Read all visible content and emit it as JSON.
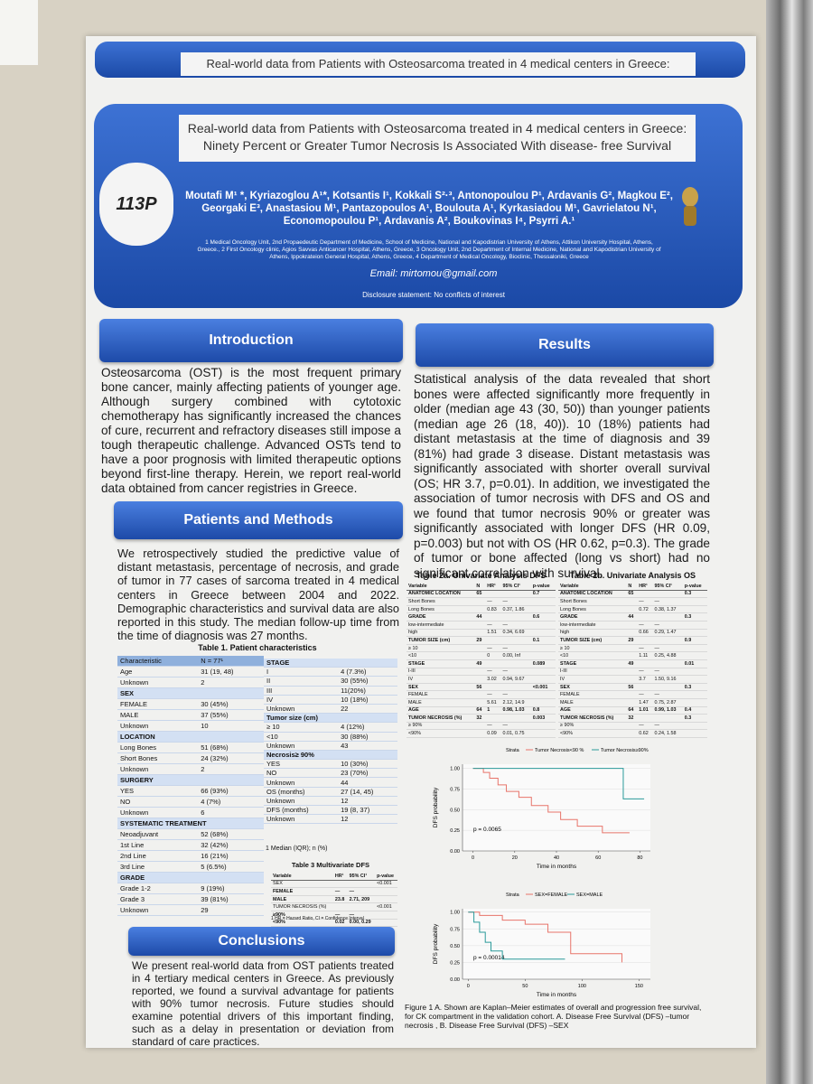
{
  "header": {
    "banner": "Real-world data from Patients with Osteosarcoma treated in 4 medical centers in Greece:",
    "title_lines": [
      "Real-world data from Patients with Osteosarcoma treated in 4 medical centers in Greece:",
      "Ninety Percent or Greater Tumor Necrosis Is Associated With disease- free Survival"
    ],
    "poster_id": "113P",
    "authors": "Moutafi M¹ *, Kyriazoglou A¹*, Kotsantis I¹, Kokkali S²·³, Antonopoulou P¹, Ardavanis G², Magkou E², Georgaki E³, Anastasiou M¹, Pantazopoulos A¹, Boulouta A¹, Kyrkasiadou M¹, Gavrielatou N¹, Economopoulou P¹, Ardavanis A², Boukovinas I⁴, Psyrri A.¹",
    "affiliations": "1 Medical Oncology Unit, 2nd Propaedeutic Department of Medicine, School of Medicine, National and Kapodistrian University of Athens, Attikon University Hospital, Athens, Greece., 2 First Oncology clinic, Agios Savvas Anticancer Hospital, Athens, Greece, 3 Oncology Unit, 2nd Department of Internal Medicine, National and Kapodistrian University of Athens, Ippokrateion General Hospital, Athens, Greece, 4 Department of Medical Oncology, Bioclinic, Thessaloniki, Greece",
    "email": "Email: mirtomou@gmail.com",
    "disclosure": "Disclosure statement: No conflicts of interest"
  },
  "introduction": {
    "heading": "Introduction",
    "text": "Osteosarcoma (OST) is the most frequent primary bone cancer, mainly affecting patients of younger age. Although surgery combined with cytotoxic chemotherapy has significantly increased the chances of cure, recurrent and refractory diseases still impose a tough therapeutic challenge. Advanced OSTs tend to have a poor prognosis with limited therapeutic options beyond first-line therapy. Herein, we report real-world data obtained from cancer registries in Greece."
  },
  "methods": {
    "heading": "Patients and Methods",
    "text": "We retrospectively studied the predictive value of distant metastasis, percentage of necrosis, and grade of tumor in 77 cases of sarcoma treated in 4 medical centers in Greece between 2004 and 2022. Demographic characteristics and survival data are also reported in this study. The median follow-up time from the time of diagnosis was 27 months."
  },
  "table1": {
    "caption": "Table 1. Patient characteristics",
    "columns": [
      "Characteristic",
      "N = 77¹"
    ],
    "rows": [
      [
        "Age",
        "31 (19, 48)"
      ],
      [
        "Unknown",
        "2"
      ],
      [
        "SEX"
      ],
      [
        "FEMALE",
        "30 (45%)"
      ],
      [
        "MALE",
        "37 (55%)"
      ],
      [
        "Unknown",
        "10"
      ],
      [
        "LOCATION"
      ],
      [
        "Long Bones",
        "51 (68%)"
      ],
      [
        "Short Bones",
        "24 (32%)"
      ],
      [
        "Unknown",
        "2"
      ],
      [
        "SURGERY"
      ],
      [
        "YES",
        "66 (93%)"
      ],
      [
        "NO",
        "4 (7%)"
      ],
      [
        "Unknown",
        "6"
      ],
      [
        "SYSTEMATIC TREATMENT"
      ],
      [
        "Neoadjuvant",
        "52 (68%)"
      ],
      [
        "1st Line",
        "32 (42%)"
      ],
      [
        "2nd Line",
        "16 (21%)"
      ],
      [
        "3rd Line",
        "5 (6.5%)"
      ],
      [
        "GRADE"
      ],
      [
        "Grade 1-2",
        "9 (19%)"
      ],
      [
        "Grade 3",
        "39 (81%)"
      ],
      [
        "Unknown",
        "29"
      ]
    ],
    "rows_right": [
      [
        "STAGE"
      ],
      [
        "I",
        "4 (7.3%)"
      ],
      [
        "II",
        "30 (55%)"
      ],
      [
        "III",
        "11(20%)"
      ],
      [
        "IV",
        "10 (18%)"
      ],
      [
        "Unknown",
        "22"
      ],
      [
        "Tumor size (cm)"
      ],
      [
        "≥ 10",
        "4 (12%)"
      ],
      [
        "<10",
        "30 (88%)"
      ],
      [
        "Unknown",
        "43"
      ],
      [
        "Necrosis≥ 90%"
      ],
      [
        "YES",
        "10 (30%)"
      ],
      [
        "NO",
        "23 (70%)"
      ],
      [
        "Unknown",
        "44"
      ],
      [
        "OS (months)",
        "27 (14, 45)"
      ],
      [
        "Unknown",
        "12"
      ],
      [
        "DFS (months)",
        "19 (8, 37)"
      ],
      [
        "Unknown",
        "12"
      ]
    ],
    "footnote": "1 Median (IQR); n (%)"
  },
  "table3": {
    "caption": "Table 3 Multivariate DFS",
    "columns": [
      "Variable",
      "HR¹",
      "95% CI¹",
      "p-value"
    ],
    "rows": [
      [
        "SEX",
        null,
        null,
        "<0.001"
      ],
      [
        "FEMALE",
        "—",
        "—",
        null
      ],
      [
        "MALE",
        "23.8",
        "2.71, 209",
        null
      ],
      [
        "TUMOR NECROSIS (%)",
        null,
        null,
        "<0.001"
      ],
      [
        "≥90%",
        "—",
        "—",
        null
      ],
      [
        "<90%",
        "0.02",
        "0.00, 0.29",
        null
      ]
    ],
    "footnote": "1 HR = Hazard Ratio, CI = Confidence Interval"
  },
  "conclusions": {
    "heading": "Conclusions",
    "text": "We present real-world data from OST patients treated in 4 tertiary medical centers in Greece. As previously reported, we found a survival advantage for patients with 90% tumor necrosis. Future studies should examine potential drivers of this important finding, such as a delay in presentation or deviation from standard of care practices."
  },
  "results": {
    "heading": "Results",
    "text": "Statistical analysis of the data revealed that short bones were affected significantly more frequently in older (median age 43 (30, 50)) than younger patients (median age 26 (18, 40)). 10 (18%) patients had distant metastasis at the time of diagnosis and 39 (81%) had grade 3 disease. Distant metastasis was significantly associated with shorter overall survival (OS; HR 3.7, p=0.01). In addition, we investigated the association of tumor necrosis with DFS and OS and we found that tumor necrosis 90% or greater was significantly associated with longer DFS (HR 0.09, p=0.003) but not with OS (HR 0.62, p=0.3). The grade of tumor or bone affected (long vs short) had no significant correlation with survival."
  },
  "table2a": {
    "caption": "Table 2a. Univariate Analysis DFS",
    "columns": [
      "Variable",
      "N",
      "HR¹",
      "95% CI¹",
      "p-value"
    ],
    "rows": [
      [
        "ANATOMIC LOCATION",
        "65",
        null,
        null,
        "0.7"
      ],
      [
        "Short Bones",
        null,
        "—",
        "—",
        null
      ],
      [
        "Long Bones",
        null,
        "0.83",
        "0.37, 1.86",
        null
      ],
      [
        "GRADE",
        "44",
        null,
        null,
        "0.6"
      ],
      [
        "low-intermediate",
        null,
        "—",
        "—",
        null
      ],
      [
        "high",
        null,
        "1.51",
        "0.34, 6.69",
        null
      ],
      [
        "TUMOR SIZE (cm)",
        "29",
        null,
        null,
        "0.1"
      ],
      [
        "≥ 10",
        null,
        "—",
        "—",
        null
      ],
      [
        "<10",
        null,
        "0",
        "0.00, Inf",
        null
      ],
      [
        "STAGE",
        "49",
        null,
        null,
        "0.089"
      ],
      [
        "I-III",
        null,
        "—",
        "—",
        null
      ],
      [
        "IV",
        null,
        "3.02",
        "0.94, 9.67",
        null
      ],
      [
        "SEX",
        "56",
        null,
        null,
        "<0.001"
      ],
      [
        "FEMALE",
        null,
        "—",
        "—",
        null
      ],
      [
        "MALE",
        null,
        "5.61",
        "2.12, 14.9",
        null
      ],
      [
        "AGE",
        "64",
        "1",
        "0.98, 1.03",
        "0.8"
      ],
      [
        "TUMOR NECROSIS (%)",
        "32",
        null,
        null,
        "0.003"
      ],
      [
        "≥ 90%",
        null,
        "—",
        "—",
        null
      ],
      [
        "<90%",
        null,
        "0.09",
        "0.01, 0.75",
        null
      ]
    ]
  },
  "table2b": {
    "caption": "Table 2b. Univariate Analysis OS",
    "columns": [
      "Variable",
      "N",
      "HR¹",
      "95% CI¹",
      "p-value"
    ],
    "rows": [
      [
        "ANATOMIC LOCATION",
        "65",
        null,
        null,
        "0.3"
      ],
      [
        "Short Bones",
        null,
        "—",
        "—",
        null
      ],
      [
        "Long Bones",
        null,
        "0.72",
        "0.38, 1.37",
        null
      ],
      [
        "GRADE",
        "44",
        null,
        null,
        "0.3"
      ],
      [
        "low-intermediate",
        null,
        "—",
        "—",
        null
      ],
      [
        "high",
        null,
        "0.66",
        "0.29, 1.47",
        null
      ],
      [
        "TUMOR SIZE (cm)",
        "29",
        null,
        null,
        "0.9"
      ],
      [
        "≥ 10",
        null,
        "—",
        "—",
        null
      ],
      [
        "<10",
        null,
        "1.11",
        "0.25, 4.88",
        null
      ],
      [
        "STAGE",
        "49",
        null,
        null,
        "0.01"
      ],
      [
        "I-III",
        null,
        "—",
        "—",
        null
      ],
      [
        "IV",
        null,
        "3.7",
        "1.50, 9.16",
        null
      ],
      [
        "SEX",
        "56",
        null,
        null,
        "0.3"
      ],
      [
        "FEMALE",
        null,
        "—",
        "—",
        null
      ],
      [
        "MALE",
        null,
        "1.47",
        "0.75, 2.87",
        null
      ],
      [
        "AGE",
        "64",
        "1.01",
        "0.99, 1.03",
        "0.4"
      ],
      [
        "TUMOR NECROSIS (%)",
        "32",
        null,
        null,
        "0.3"
      ],
      [
        "≥ 90%",
        null,
        "—",
        "—",
        null
      ],
      [
        "<90%",
        null,
        "0.62",
        "0.24, 1.58",
        null
      ]
    ]
  },
  "figures": {
    "a": {
      "legend_title": "Strata",
      "ylabel": "DFS probability",
      "xlabel": "Time in months",
      "annotation": "p = 0.0065",
      "xlim": [
        -5,
        85
      ],
      "ylim": [
        0,
        1.05
      ],
      "xticks": [
        0,
        20,
        40,
        60,
        80
      ],
      "yticks": [
        {
          "value": 0,
          "label": "0.00"
        },
        {
          "value": 0.25,
          "label": "0.25"
        },
        {
          "value": 0.5,
          "label": "0.50"
        },
        {
          "value": 0.75,
          "label": "0.75"
        },
        {
          "value": 1,
          "label": "1.00"
        }
      ],
      "series": [
        {
          "name": "Tumor Necrosis<90 %",
          "color": "#e8746a",
          "x": [
            0,
            5,
            5,
            8,
            8,
            12,
            12,
            16,
            16,
            22,
            22,
            28,
            28,
            36,
            36,
            42,
            42,
            50,
            50,
            62,
            62,
            75
          ],
          "y": [
            1,
            1,
            0.95,
            0.95,
            0.88,
            0.88,
            0.8,
            0.8,
            0.72,
            0.72,
            0.65,
            0.65,
            0.55,
            0.55,
            0.47,
            0.47,
            0.38,
            0.38,
            0.3,
            0.3,
            0.22,
            0.22
          ]
        },
        {
          "name": "Tumor Necrosis≥90%",
          "color": "#2a9a9a",
          "x": [
            0,
            72,
            72,
            82
          ],
          "y": [
            1,
            1,
            0.63,
            0.63
          ]
        }
      ]
    },
    "b": {
      "legend_title": "Strata",
      "ylabel": "DFS probability",
      "xlabel": "Time in months",
      "annotation": "p = 0.00014",
      "xlim": [
        -5,
        160
      ],
      "ylim": [
        0,
        1.05
      ],
      "xticks": [
        0,
        50,
        100,
        150
      ],
      "yticks": [
        {
          "value": 0,
          "label": "0.00"
        },
        {
          "value": 0.25,
          "label": "0.25"
        },
        {
          "value": 0.5,
          "label": "0.50"
        },
        {
          "value": 0.75,
          "label": "0.75"
        },
        {
          "value": 1,
          "label": "1.00"
        }
      ],
      "series": [
        {
          "name": "SEX=FEMALE",
          "color": "#e8746a",
          "x": [
            0,
            10,
            10,
            30,
            30,
            50,
            50,
            70,
            70,
            90,
            90,
            135,
            135
          ],
          "y": [
            1,
            1,
            0.95,
            0.95,
            0.88,
            0.88,
            0.82,
            0.82,
            0.7,
            0.7,
            0.38,
            0.38,
            0.25
          ]
        },
        {
          "name": "SEX=MALE",
          "color": "#2a9a9a",
          "x": [
            0,
            5,
            5,
            10,
            10,
            15,
            15,
            20,
            20,
            30,
            30,
            85
          ],
          "y": [
            1,
            1,
            0.85,
            0.85,
            0.7,
            0.7,
            0.55,
            0.55,
            0.42,
            0.42,
            0.3,
            0.3
          ]
        }
      ]
    },
    "caption": "Figure 1 A. Shown are Kaplan–Meier estimates of overall and progression free survival, for CK compartment in the validation cohort. A. Disease Free Survival (DFS) –tumor necrosis , B. Disease Free Survival (DFS) –SEX"
  }
}
